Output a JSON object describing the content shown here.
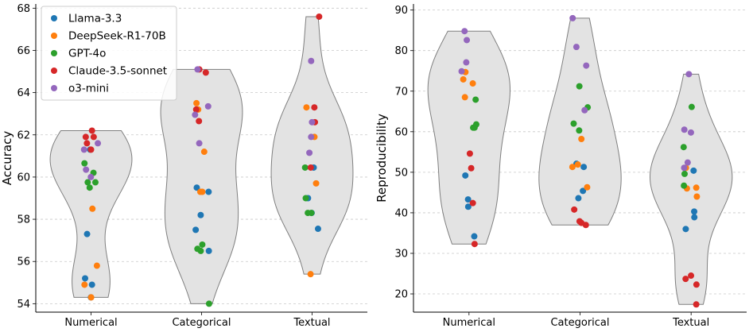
{
  "colors": {
    "Llama-3.3": "#1f77b4",
    "DeepSeek-R1-70B": "#ff7f0e",
    "GPT-4o": "#2ca02c",
    "Claude-3.5-sonnet": "#d62728",
    "o3-mini": "#9467bd",
    "violin_fill": "#e3e3e3",
    "violin_edge": "#7f7f7f",
    "grid": "#c8c8c8"
  },
  "legend": {
    "entries": [
      "Llama-3.3",
      "DeepSeek-R1-70B",
      "GPT-4o",
      "Claude-3.5-sonnet",
      "o3-mini"
    ],
    "location": "top-left of left panel"
  },
  "chart_data": [
    {
      "type": "violin-strip",
      "title": "",
      "xlabel": "",
      "ylabel": "Accuracy",
      "categories": [
        "Numerical",
        "Categorical",
        "Textual"
      ],
      "ylim": [
        53.6,
        68.2
      ],
      "yticks": [
        54,
        56,
        58,
        60,
        62,
        64,
        66,
        68
      ],
      "grid": "horizontal dashed",
      "points": {
        "Numerical": {
          "Llama-3.3": [
            54.3,
            54.9,
            55.2,
            57.3,
            61.3
          ],
          "DeepSeek-R1-70B": [
            54.3,
            54.9,
            55.8,
            58.5
          ],
          "GPT-4o": [
            59.5,
            59.75,
            59.75,
            60.2,
            60.65
          ],
          "Claude-3.5-sonnet": [
            61.3,
            61.6,
            61.9,
            61.9,
            62.2
          ],
          "o3-mini": [
            60.0,
            60.35,
            61.3,
            61.6
          ]
        },
        "Categorical": {
          "Llama-3.3": [
            56.5,
            57.5,
            58.2,
            59.3,
            59.5
          ],
          "DeepSeek-R1-70B": [
            59.3,
            59.3,
            61.2,
            63.2,
            63.5
          ],
          "GPT-4o": [
            54.0,
            56.5,
            56.6,
            56.8
          ],
          "Claude-3.5-sonnet": [
            62.65,
            63.2,
            64.95,
            65.1
          ],
          "o3-mini": [
            61.6,
            62.95,
            63.35,
            65.1
          ]
        },
        "Textual": {
          "Llama-3.3": [
            57.55,
            58.3,
            59.0,
            60.45
          ],
          "DeepSeek-R1-70B": [
            55.4,
            59.7,
            61.9,
            63.3
          ],
          "GPT-4o": [
            58.3,
            58.3,
            59.0,
            60.45
          ],
          "Claude-3.5-sonnet": [
            60.45,
            62.6,
            63.3,
            67.6
          ],
          "o3-mini": [
            61.15,
            61.9,
            62.6,
            65.5
          ]
        }
      }
    },
    {
      "type": "violin-strip",
      "title": "",
      "xlabel": "",
      "ylabel": "Reproducibility",
      "categories": [
        "Numerical",
        "Categorical",
        "Textual"
      ],
      "ylim": [
        15.5,
        91.5
      ],
      "yticks": [
        20,
        30,
        40,
        50,
        60,
        70,
        80,
        90
      ],
      "grid": "horizontal dashed",
      "points": {
        "Numerical": {
          "Llama-3.3": [
            34.2,
            41.5,
            43.3,
            49.2
          ],
          "DeepSeek-R1-70B": [
            68.5,
            71.9,
            72.9,
            74.7
          ],
          "GPT-4o": [
            61.0,
            61.0,
            61.8,
            67.9
          ],
          "Claude-3.5-sonnet": [
            32.3,
            42.4,
            51.0,
            54.6
          ],
          "o3-mini": [
            74.9,
            77.1,
            82.6,
            84.8
          ]
        },
        "Categorical": {
          "Llama-3.3": [
            43.6,
            45.4,
            51.3,
            52.1
          ],
          "DeepSeek-R1-70B": [
            46.3,
            51.3,
            51.9,
            58.2
          ],
          "GPT-4o": [
            60.3,
            62.0,
            66.0,
            71.2
          ],
          "Claude-3.5-sonnet": [
            37.0,
            37.5,
            37.9,
            40.8
          ],
          "o3-mini": [
            65.3,
            76.3,
            80.9,
            88.0
          ]
        },
        "Textual": {
          "Llama-3.3": [
            36.0,
            38.9,
            40.3,
            50.4
          ],
          "DeepSeek-R1-70B": [
            44.0,
            46.0,
            46.2,
            51.1
          ],
          "GPT-4o": [
            46.7,
            49.6,
            56.2,
            66.1
          ],
          "Claude-3.5-sonnet": [
            17.4,
            22.3,
            23.7,
            24.5
          ],
          "o3-mini": [
            51.1,
            52.4,
            59.8,
            60.5,
            74.2
          ]
        }
      }
    }
  ]
}
